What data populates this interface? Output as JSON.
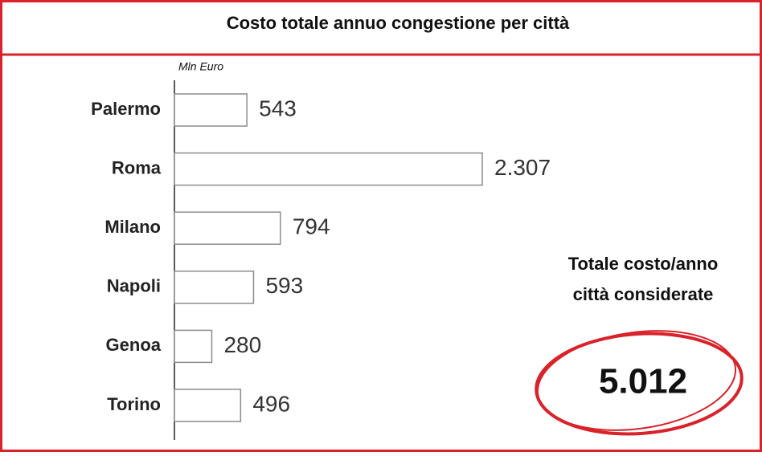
{
  "chart_data": {
    "type": "bar",
    "orientation": "horizontal",
    "title": "Costo totale annuo congestione per città",
    "unit_label": "Mln Euro",
    "categories": [
      "Palermo",
      "Roma",
      "Milano",
      "Napoli",
      "Genoa",
      "Torino"
    ],
    "values": [
      543,
      2307,
      794,
      593,
      280,
      496
    ],
    "value_labels": [
      "543",
      "2.307",
      "794",
      "593",
      "280",
      "496"
    ],
    "color": "#ffffff",
    "annotations": [
      "Totale costo/anno",
      "città considerate",
      "5.012"
    ]
  }
}
